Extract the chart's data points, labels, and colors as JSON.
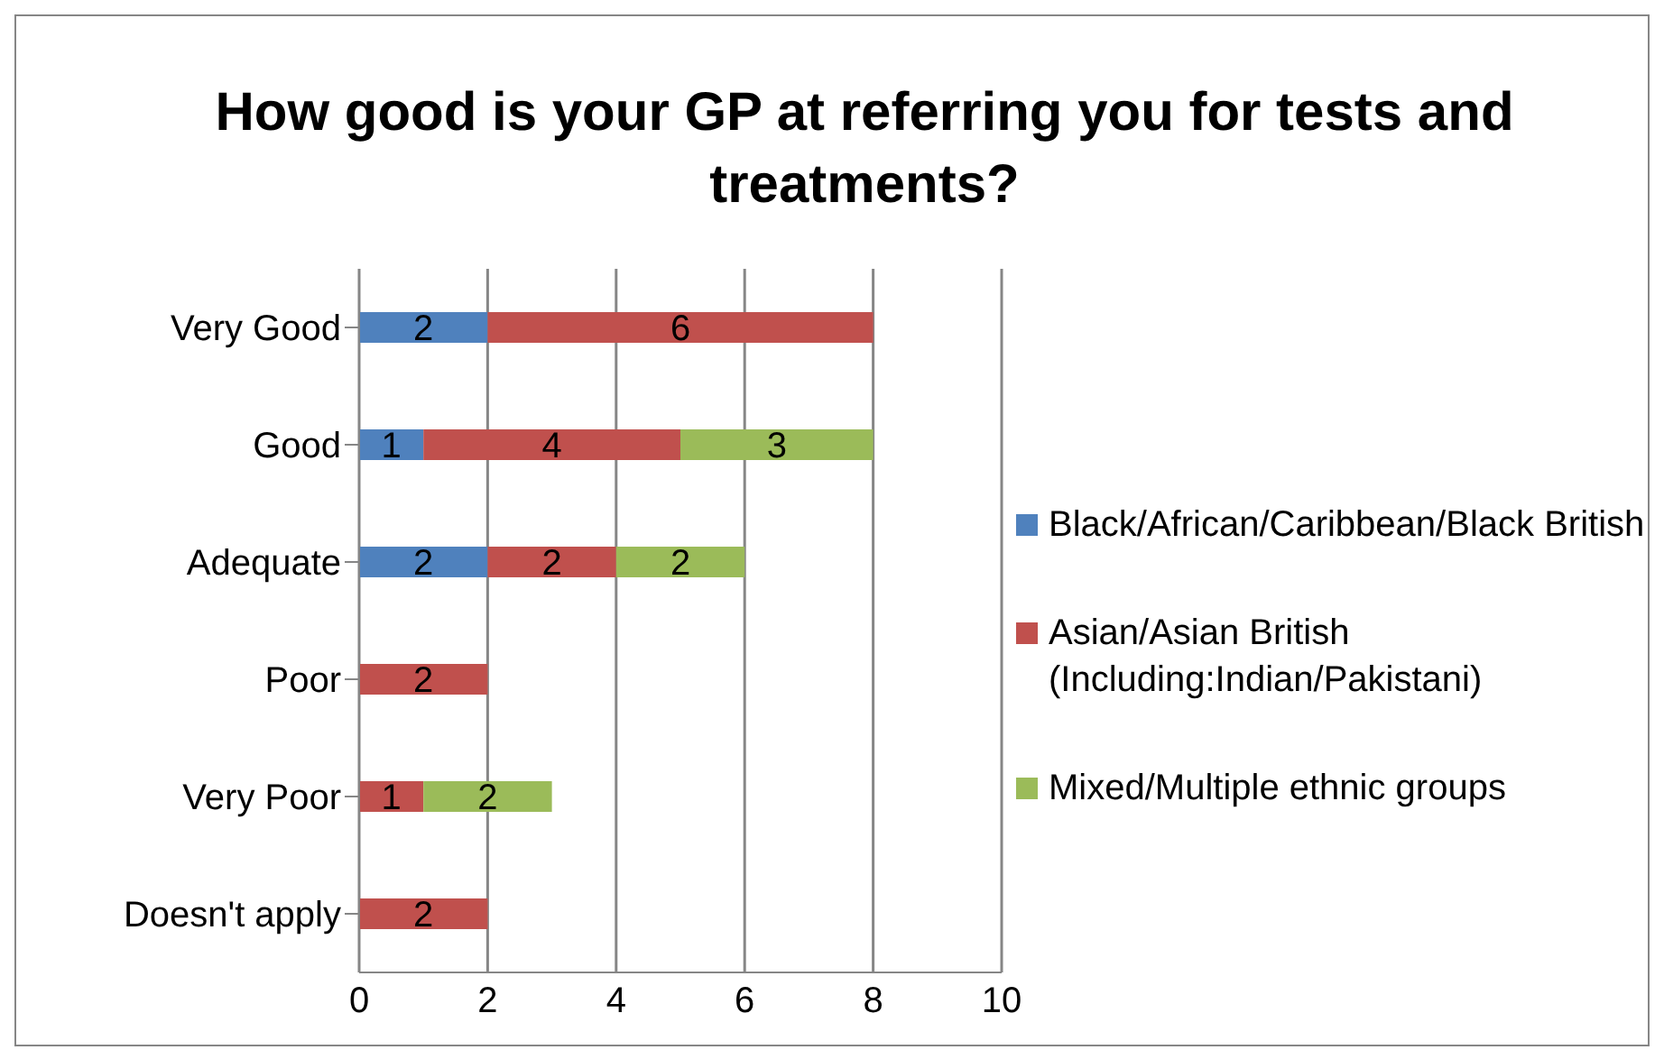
{
  "chart_data": {
    "type": "bar",
    "orientation": "horizontal",
    "stacked": true,
    "title": "How good is your GP at referring you for tests and treatments?",
    "categories": [
      "Very Good",
      "Good",
      "Adequate",
      "Poor",
      "Very Poor",
      "Doesn't apply"
    ],
    "series": [
      {
        "name": "Black/African/Caribbean/Black British",
        "color": "#4f81bd",
        "values": [
          2,
          1,
          2,
          null,
          null,
          null
        ]
      },
      {
        "name": "Asian/Asian British (Including:Indian/Pakistani)",
        "color": "#c0504d",
        "values": [
          6,
          4,
          2,
          2,
          1,
          2
        ]
      },
      {
        "name": "Mixed/Multiple ethnic groups",
        "color": "#9bbb59",
        "values": [
          null,
          3,
          2,
          null,
          2,
          null
        ]
      }
    ],
    "xlim": [
      0,
      10
    ],
    "xticks": [
      0,
      2,
      4,
      6,
      8,
      10
    ],
    "grid": "x",
    "legend": "right",
    "data_labels": true
  }
}
